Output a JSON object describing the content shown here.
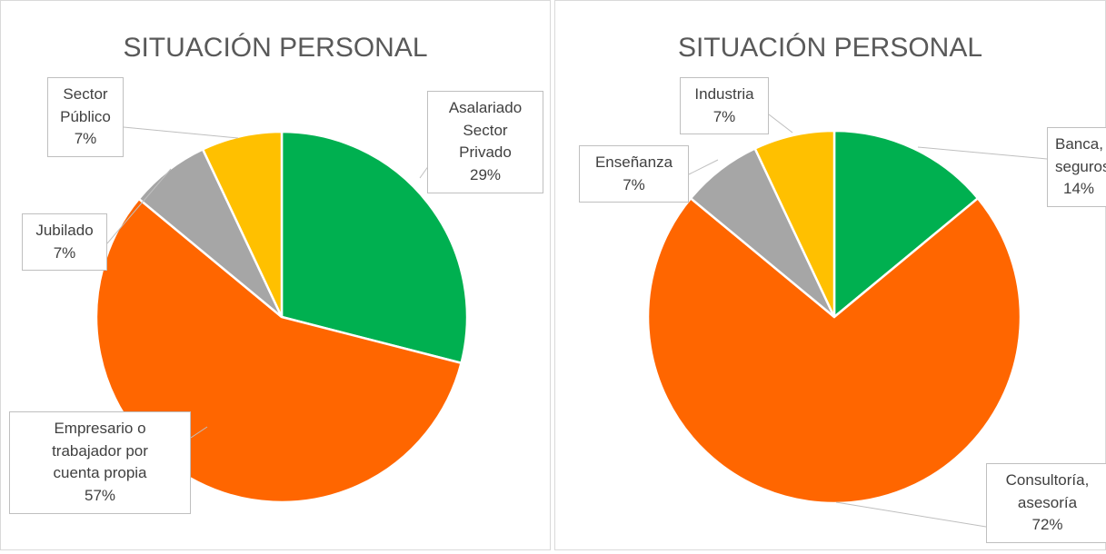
{
  "chart_data": [
    {
      "type": "pie",
      "title": "SITUACIÓN PERSONAL",
      "categories": [
        "Asalariado\nSector\nPrivado",
        "Empresario o\ntrabajador por\ncuenta propia",
        "Jubilado",
        "Sector\nPúblico"
      ],
      "values": [
        29,
        57,
        7,
        7
      ],
      "value_labels": [
        "29%",
        "57%",
        "7%",
        "7%"
      ],
      "colors": [
        "#00b050",
        "#ff6600",
        "#a6a6a6",
        "#ffc000"
      ]
    },
    {
      "type": "pie",
      "title": "SITUACIÓN PERSONAL",
      "categories": [
        "Banca,\nseguros",
        "Consultoría,\nasesoría",
        "Enseñanza",
        "Industria"
      ],
      "values": [
        14,
        72,
        7,
        7
      ],
      "value_labels": [
        "14%",
        "72%",
        "7%",
        "7%"
      ],
      "colors": [
        "#00b050",
        "#ff6600",
        "#a6a6a6",
        "#ffc000"
      ]
    }
  ]
}
